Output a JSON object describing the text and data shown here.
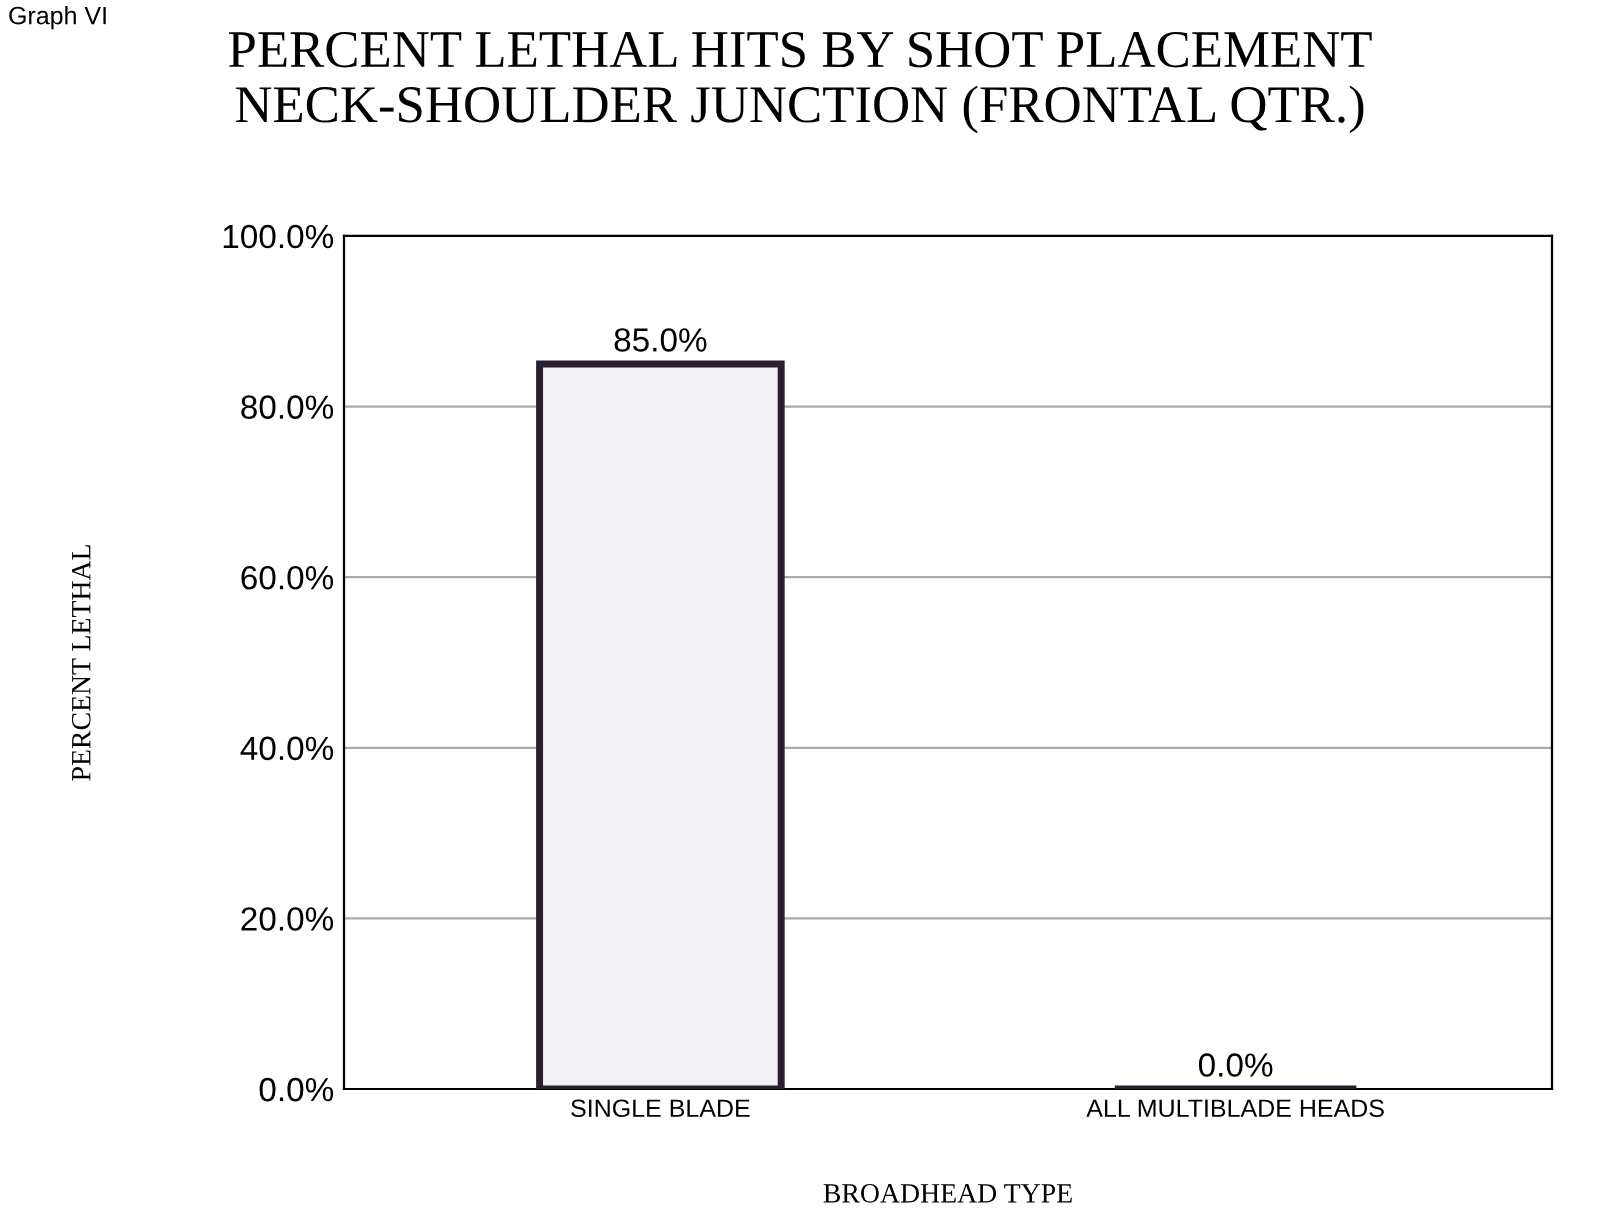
{
  "chart_data": {
    "type": "bar",
    "title": "PERCENT LETHAL HITS BY SHOT PLACEMENT\nNECK-SHOULDER JUNCTION (FRONTAL QTR.)",
    "xlabel": "BROADHEAD TYPE",
    "ylabel": "PERCENT LETHAL",
    "categories": [
      "SINGLE BLADE",
      "ALL MULTIBLADE HEADS"
    ],
    "values": [
      85.0,
      0.0
    ],
    "value_labels": [
      "85.0%",
      "0.0%"
    ],
    "colors": [
      "#f2f2f6",
      "#2a1f2e"
    ],
    "ylim": [
      0,
      100
    ],
    "yticks": [
      {
        "value": 0,
        "label": "0.0%"
      },
      {
        "value": 20,
        "label": "20.0%"
      },
      {
        "value": 40,
        "label": "40.0%"
      },
      {
        "value": 60,
        "label": "60.0%"
      },
      {
        "value": 80,
        "label": "80.0%"
      },
      {
        "value": 100,
        "label": "100.0%"
      }
    ],
    "grid": "y",
    "annotations": [
      "Graph VI"
    ]
  }
}
